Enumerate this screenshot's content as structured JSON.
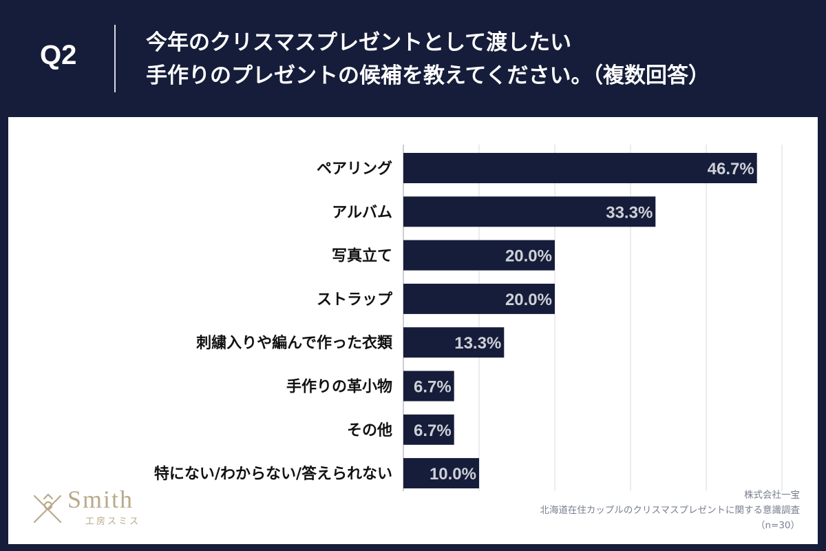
{
  "header": {
    "q_label": "Q2",
    "title_line1": "今年のクリスマスプレゼントとして渡したい",
    "title_line2": "手作りのプレゼントの候補を教えてください。（複数回答）"
  },
  "chart_data": {
    "type": "bar",
    "orientation": "horizontal",
    "categories": [
      "ペアリング",
      "アルバム",
      "写真立て",
      "ストラップ",
      "刺繍入りや編んで作った衣類",
      "手作りの革小物",
      "その他",
      "特にない/わからない/答えられない"
    ],
    "values": [
      46.7,
      33.3,
      20.0,
      20.0,
      13.3,
      6.7,
      6.7,
      10.0
    ],
    "value_labels": [
      "46.7%",
      "33.3%",
      "20.0%",
      "20.0%",
      "13.3%",
      "6.7%",
      "6.7%",
      "10.0%"
    ],
    "xlim": [
      0,
      50
    ],
    "grid": true,
    "bar_color": "#161d3a",
    "label_color": "#cfd1d8"
  },
  "logo": {
    "word": "Smith",
    "sub": "工房スミス"
  },
  "source": {
    "line1": "株式会社一宝",
    "line2": "北海道在住カップルのクリスマスプレゼントに関する意識調査",
    "line3": "（n=30）"
  }
}
